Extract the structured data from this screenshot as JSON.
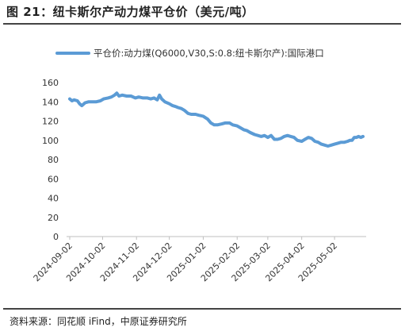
{
  "figure": {
    "title": "图 21：纽卡斯尔产动力煤平仓价（美元/吨）",
    "source": "资料来源：同花顺 iFind，中原证券研究所"
  },
  "chart_data": {
    "type": "line",
    "title": "",
    "xlabel": "",
    "ylabel": "",
    "ylim": [
      0,
      160
    ],
    "yticks": [
      0,
      20,
      40,
      60,
      80,
      100,
      120,
      140,
      160
    ],
    "xticks": [
      "2024-09-02",
      "2024-10-02",
      "2024-11-02",
      "2024-12-02",
      "2025-01-02",
      "2025-02-02",
      "2025-03-02",
      "2025-04-02",
      "2025-05-02"
    ],
    "grid": false,
    "legend_position": "top",
    "series": [
      {
        "name": "平仓价:动力煤(Q6000,V30,S:0.8:纽卡斯尔产):国际港口",
        "color": "#5b9bd5",
        "points": [
          [
            "2024-09-02",
            143
          ],
          [
            "2024-09-04",
            141
          ],
          [
            "2024-09-06",
            142
          ],
          [
            "2024-09-09",
            141
          ],
          [
            "2024-09-11",
            138
          ],
          [
            "2024-09-13",
            136
          ],
          [
            "2024-09-16",
            139
          ],
          [
            "2024-09-19",
            140
          ],
          [
            "2024-09-23",
            140
          ],
          [
            "2024-09-26",
            140
          ],
          [
            "2024-09-30",
            141
          ],
          [
            "2024-10-03",
            143
          ],
          [
            "2024-10-07",
            144
          ],
          [
            "2024-10-10",
            145
          ],
          [
            "2024-10-13",
            147
          ],
          [
            "2024-10-15",
            149
          ],
          [
            "2024-10-17",
            146
          ],
          [
            "2024-10-20",
            147
          ],
          [
            "2024-10-24",
            146
          ],
          [
            "2024-10-28",
            146
          ],
          [
            "2024-11-01",
            144
          ],
          [
            "2024-11-04",
            145
          ],
          [
            "2024-11-08",
            144
          ],
          [
            "2024-11-12",
            144
          ],
          [
            "2024-11-15",
            143
          ],
          [
            "2024-11-18",
            144
          ],
          [
            "2024-11-21",
            142
          ],
          [
            "2024-11-23",
            147
          ],
          [
            "2024-11-25",
            143
          ],
          [
            "2024-11-28",
            140
          ],
          [
            "2024-12-02",
            138
          ],
          [
            "2024-12-05",
            136
          ],
          [
            "2024-12-08",
            135
          ],
          [
            "2024-12-10",
            134
          ],
          [
            "2024-12-13",
            133
          ],
          [
            "2024-12-16",
            131
          ],
          [
            "2024-12-19",
            128
          ],
          [
            "2024-12-22",
            127
          ],
          [
            "2024-12-26",
            127
          ],
          [
            "2024-12-29",
            126
          ],
          [
            "2025-01-02",
            125
          ],
          [
            "2025-01-06",
            122
          ],
          [
            "2025-01-09",
            118
          ],
          [
            "2025-01-12",
            116
          ],
          [
            "2025-01-15",
            116
          ],
          [
            "2025-01-19",
            117
          ],
          [
            "2025-01-22",
            118
          ],
          [
            "2025-01-26",
            118
          ],
          [
            "2025-01-29",
            116
          ],
          [
            "2025-02-02",
            115
          ],
          [
            "2025-02-05",
            113
          ],
          [
            "2025-02-08",
            111
          ],
          [
            "2025-02-11",
            110
          ],
          [
            "2025-02-14",
            108
          ],
          [
            "2025-02-18",
            106
          ],
          [
            "2025-02-21",
            105
          ],
          [
            "2025-02-24",
            104
          ],
          [
            "2025-02-27",
            105
          ],
          [
            "2025-03-02",
            103
          ],
          [
            "2025-03-05",
            105
          ],
          [
            "2025-03-08",
            101
          ],
          [
            "2025-03-11",
            101
          ],
          [
            "2025-03-14",
            102
          ],
          [
            "2025-03-17",
            104
          ],
          [
            "2025-03-20",
            105
          ],
          [
            "2025-03-23",
            104
          ],
          [
            "2025-03-26",
            103
          ],
          [
            "2025-03-29",
            100
          ],
          [
            "2025-04-02",
            99
          ],
          [
            "2025-04-05",
            101
          ],
          [
            "2025-04-08",
            103
          ],
          [
            "2025-04-11",
            102
          ],
          [
            "2025-04-14",
            99
          ],
          [
            "2025-04-17",
            98
          ],
          [
            "2025-04-20",
            96
          ],
          [
            "2025-04-23",
            95
          ],
          [
            "2025-04-26",
            94
          ],
          [
            "2025-04-29",
            95
          ],
          [
            "2025-05-02",
            96
          ],
          [
            "2025-05-05",
            97
          ],
          [
            "2025-05-08",
            98
          ],
          [
            "2025-05-11",
            98
          ],
          [
            "2025-05-14",
            99
          ],
          [
            "2025-05-16",
            100
          ],
          [
            "2025-05-18",
            100
          ],
          [
            "2025-05-20",
            103
          ],
          [
            "2025-05-22",
            103
          ],
          [
            "2025-05-24",
            104
          ],
          [
            "2025-05-26",
            103
          ],
          [
            "2025-05-28",
            104
          ]
        ]
      }
    ]
  }
}
